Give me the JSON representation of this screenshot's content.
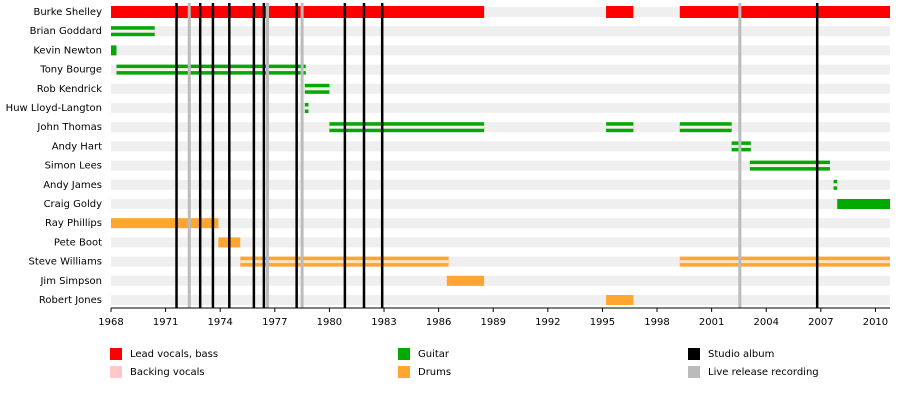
{
  "chart_data": {
    "type": "timeline",
    "xlim": [
      1968,
      2010.8
    ],
    "xticks": [
      1968,
      1971,
      1974,
      1977,
      1980,
      1983,
      1986,
      1989,
      1992,
      1995,
      1998,
      2001,
      2004,
      2007,
      2010
    ],
    "legend": [
      {
        "name": "Lead vocals, bass",
        "color": "#ff0000"
      },
      {
        "name": "Backing vocals",
        "color": "#ffc8c8"
      },
      {
        "name": "Guitar",
        "color": "#00aa00"
      },
      {
        "name": "Drums",
        "color": "#ffa530"
      }
    ],
    "members": [
      {
        "name": "Burke Shelley",
        "bars": [
          {
            "start": 1968,
            "end": 1988.5,
            "color": "#ff0000",
            "full": true
          },
          {
            "start": 1995.2,
            "end": 1996.7,
            "color": "#ff0000",
            "full": true
          },
          {
            "start": 1999.25,
            "end": 2010.8,
            "color": "#ff0000",
            "full": true
          }
        ]
      },
      {
        "name": "Brian Goddard",
        "bars": [
          {
            "start": 1968,
            "end": 1970.4,
            "color": "#00aa00",
            "stripe": "#fbeeee"
          }
        ]
      },
      {
        "name": "Kevin Newton",
        "bars": [
          {
            "start": 1968,
            "end": 1968.3,
            "color": "#00aa00"
          }
        ]
      },
      {
        "name": "Tony Bourge",
        "bars": [
          {
            "start": 1968.3,
            "end": 1978.7,
            "color": "#00aa00",
            "stripe": "#fbeeee"
          }
        ]
      },
      {
        "name": "Rob Kendrick",
        "bars": [
          {
            "start": 1978.65,
            "end": 1980,
            "color": "#00aa00",
            "stripe": "#fbeeee"
          }
        ]
      },
      {
        "name": "Huw Lloyd-Langton",
        "bars": [
          {
            "start": 1978.65,
            "end": 1978.85,
            "color": "#00aa00",
            "stripe": "#fbeeee"
          }
        ]
      },
      {
        "name": "John Thomas",
        "bars": [
          {
            "start": 1980,
            "end": 1988.5,
            "color": "#00aa00",
            "stripe": "#fbeeee"
          },
          {
            "start": 1995.2,
            "end": 1996.7,
            "color": "#00aa00",
            "stripe": "#fbeeee"
          },
          {
            "start": 1999.25,
            "end": 2002.1,
            "color": "#00aa00",
            "stripe": "#fbeeee"
          }
        ]
      },
      {
        "name": "Andy Hart",
        "bars": [
          {
            "start": 2002.1,
            "end": 2003.15,
            "color": "#00aa00",
            "stripe": "#fbeeee"
          }
        ]
      },
      {
        "name": "Simon Lees",
        "bars": [
          {
            "start": 2003.1,
            "end": 2007.5,
            "color": "#00aa00",
            "stripe": "#fbeeee"
          }
        ]
      },
      {
        "name": "Andy James",
        "bars": [
          {
            "start": 2007.7,
            "end": 2007.9,
            "color": "#00aa00",
            "stripe": "#fbeeee"
          }
        ]
      },
      {
        "name": "Craig Goldy",
        "bars": [
          {
            "start": 2007.9,
            "end": 2010.8,
            "color": "#00aa00"
          }
        ]
      },
      {
        "name": "Ray Phillips",
        "bars": [
          {
            "start": 1968,
            "end": 1973.9,
            "color": "#ffa530"
          }
        ]
      },
      {
        "name": "Pete Boot",
        "bars": [
          {
            "start": 1973.9,
            "end": 1975.1,
            "color": "#ffa530"
          }
        ]
      },
      {
        "name": "Steve Williams",
        "bars": [
          {
            "start": 1975.1,
            "end": 1986.55,
            "color": "#ffa530",
            "stripe": "#ffe0c0"
          },
          {
            "start": 1999.25,
            "end": 2010.8,
            "color": "#ffa530",
            "stripe": "#ffe0c0"
          }
        ]
      },
      {
        "name": "Jim Simpson",
        "bars": [
          {
            "start": 1986.45,
            "end": 1988.5,
            "color": "#ffa530"
          }
        ]
      },
      {
        "name": "Robert Jones",
        "bars": [
          {
            "start": 1995.2,
            "end": 1996.7,
            "color": "#ffa530"
          }
        ]
      }
    ],
    "markers": [
      {
        "name": "Studio album",
        "color": "#000000",
        "x": [
          1971.6,
          1972.9,
          1973.6,
          1974.5,
          1975.85,
          1976.4,
          1978.2,
          1980.85,
          1981.9,
          1982.9,
          2006.8
        ]
      },
      {
        "name": "Live release recording",
        "color": "#bbbbbb",
        "x": [
          1972.3,
          1976.6,
          1978.5,
          2002.55
        ]
      }
    ]
  }
}
